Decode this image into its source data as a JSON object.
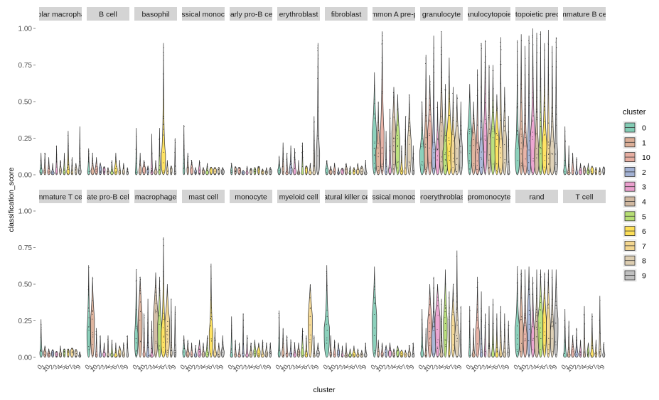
{
  "chart_data": {
    "type": "violin",
    "xlabel": "cluster",
    "ylabel": "classification_score",
    "ylim": [
      0,
      1
    ],
    "yticks": [
      "0.00",
      "0.25",
      "0.50",
      "0.75",
      "1.00"
    ],
    "categories": [
      "0",
      "1",
      "10",
      "2",
      "3",
      "4",
      "5",
      "6",
      "7",
      "8",
      "9"
    ],
    "legend": {
      "title": "cluster",
      "position": "right",
      "entries": [
        {
          "label": "0",
          "color": "#66C2A5"
        },
        {
          "label": "1",
          "color": "#D49C7F"
        },
        {
          "label": "10",
          "color": "#E29B8B"
        },
        {
          "label": "2",
          "color": "#8DA0CB"
        },
        {
          "label": "3",
          "color": "#E78AC3"
        },
        {
          "label": "4",
          "color": "#C7A98B"
        },
        {
          "label": "5",
          "color": "#A6D854"
        },
        {
          "label": "6",
          "color": "#FFD92F"
        },
        {
          "label": "7",
          "color": "#F2CE75"
        },
        {
          "label": "8",
          "color": "#D6C3A0"
        },
        {
          "label": "9",
          "color": "#B3B3B3"
        }
      ]
    },
    "panels": [
      {
        "label": "bipolar macrophage",
        "max": [
          0.15,
          0.15,
          0.12,
          0.08,
          0.2,
          0.1,
          0.15,
          0.3,
          0.12,
          0.08,
          0.33
        ]
      },
      {
        "label": "B cell",
        "max": [
          0.18,
          0.15,
          0.12,
          0.08,
          0.05,
          0.05,
          0.1,
          0.15,
          0.1,
          0.08,
          0.05
        ]
      },
      {
        "label": "basophil",
        "max": [
          0.32,
          0.15,
          0.1,
          0.06,
          0.28,
          0.1,
          0.32,
          0.9,
          0.1,
          0.06,
          0.25
        ]
      },
      {
        "label": "classical monocyte",
        "max": [
          0.34,
          0.15,
          0.1,
          0.05,
          0.1,
          0.05,
          0.08,
          0.05,
          0.05,
          0.05,
          0.05
        ]
      },
      {
        "label": "early pro-B cell",
        "max": [
          0.08,
          0.05,
          0.04,
          0.03,
          0.06,
          0.04,
          0.05,
          0.04,
          0.04,
          0.05,
          0.05
        ]
      },
      {
        "label": "erythroblast",
        "max": [
          0.13,
          0.22,
          0.15,
          0.2,
          0.18,
          0.1,
          0.22,
          0.05,
          0.08,
          0.4,
          0.9
        ]
      },
      {
        "label": "fibroblast",
        "max": [
          0.1,
          0.06,
          0.08,
          0.05,
          0.04,
          0.08,
          0.06,
          0.05,
          0.08,
          0.06,
          0.1
        ]
      },
      {
        "label": "common A pre-pro",
        "max": [
          0.7,
          0.5,
          0.98,
          0.3,
          0.45,
          0.6,
          0.55,
          0.2,
          0.4,
          0.55,
          0.2
        ]
      },
      {
        "label": "granulocyte",
        "max": [
          0.5,
          0.82,
          0.68,
          0.95,
          0.5,
          0.98,
          0.62,
          0.8,
          0.6,
          0.55,
          0.5
        ]
      },
      {
        "label": "granulocytopoietic",
        "max": [
          0.62,
          0.5,
          0.72,
          0.9,
          0.92,
          0.75,
          0.75,
          0.55,
          0.94,
          0.6,
          0.4
        ]
      },
      {
        "label": "hematopoietic precursor",
        "max": [
          0.92,
          0.96,
          0.88,
          0.95,
          1.0,
          0.97,
          0.98,
          0.9,
          0.99,
          0.88,
          0.94
        ]
      },
      {
        "label": "immature B cell",
        "max": [
          0.33,
          0.2,
          0.15,
          0.12,
          0.08,
          0.06,
          0.08,
          0.06,
          0.05,
          0.05,
          0.05
        ]
      },
      {
        "label": "immature T cell",
        "max": [
          0.26,
          0.08,
          0.06,
          0.05,
          0.04,
          0.08,
          0.05,
          0.05,
          0.06,
          0.05,
          0.04
        ]
      },
      {
        "label": "late pro-B cell",
        "max": [
          0.63,
          0.55,
          0.2,
          0.15,
          0.1,
          0.15,
          0.12,
          0.1,
          0.08,
          0.1,
          0.15
        ]
      },
      {
        "label": "macrophage",
        "max": [
          0.6,
          0.55,
          0.3,
          0.4,
          0.25,
          0.58,
          0.55,
          0.82,
          0.5,
          0.4,
          0.35
        ]
      },
      {
        "label": "mast cell",
        "max": [
          0.15,
          0.12,
          0.1,
          0.08,
          0.12,
          0.1,
          0.15,
          0.64,
          0.2,
          0.1,
          0.15
        ]
      },
      {
        "label": "monocyte",
        "max": [
          0.28,
          0.12,
          0.1,
          0.3,
          0.15,
          0.1,
          0.12,
          0.1,
          0.12,
          0.1,
          0.1
        ]
      },
      {
        "label": "myeloid cell",
        "max": [
          0.32,
          0.2,
          0.15,
          0.12,
          0.1,
          0.1,
          0.2,
          0.15,
          0.5,
          0.15,
          0.1
        ]
      },
      {
        "label": "natural killer cell",
        "max": [
          0.63,
          0.15,
          0.12,
          0.1,
          0.08,
          0.1,
          0.06,
          0.08,
          0.06,
          0.05,
          0.1
        ]
      },
      {
        "label": "classical monocyte",
        "max": [
          0.62,
          0.12,
          0.1,
          0.08,
          0.1,
          0.06,
          0.08,
          0.05,
          0.05,
          0.08,
          0.1
        ]
      },
      {
        "label": "proerythroblast",
        "max": [
          0.33,
          0.2,
          0.5,
          0.55,
          0.5,
          0.4,
          0.6,
          0.45,
          0.5,
          0.73,
          0.35
        ]
      },
      {
        "label": "promonocyte",
        "max": [
          0.35,
          0.2,
          0.55,
          0.45,
          0.3,
          0.35,
          0.4,
          0.3,
          0.35,
          0.3,
          0.25
        ]
      },
      {
        "label": "rand",
        "max": [
          0.62,
          0.6,
          0.6,
          0.62,
          0.55,
          0.6,
          0.6,
          0.58,
          0.6,
          0.6,
          0.6
        ]
      },
      {
        "label": "T cell",
        "max": [
          0.33,
          0.25,
          0.15,
          0.2,
          0.12,
          0.35,
          0.1,
          0.3,
          0.12,
          0.42,
          0.1
        ]
      }
    ]
  }
}
